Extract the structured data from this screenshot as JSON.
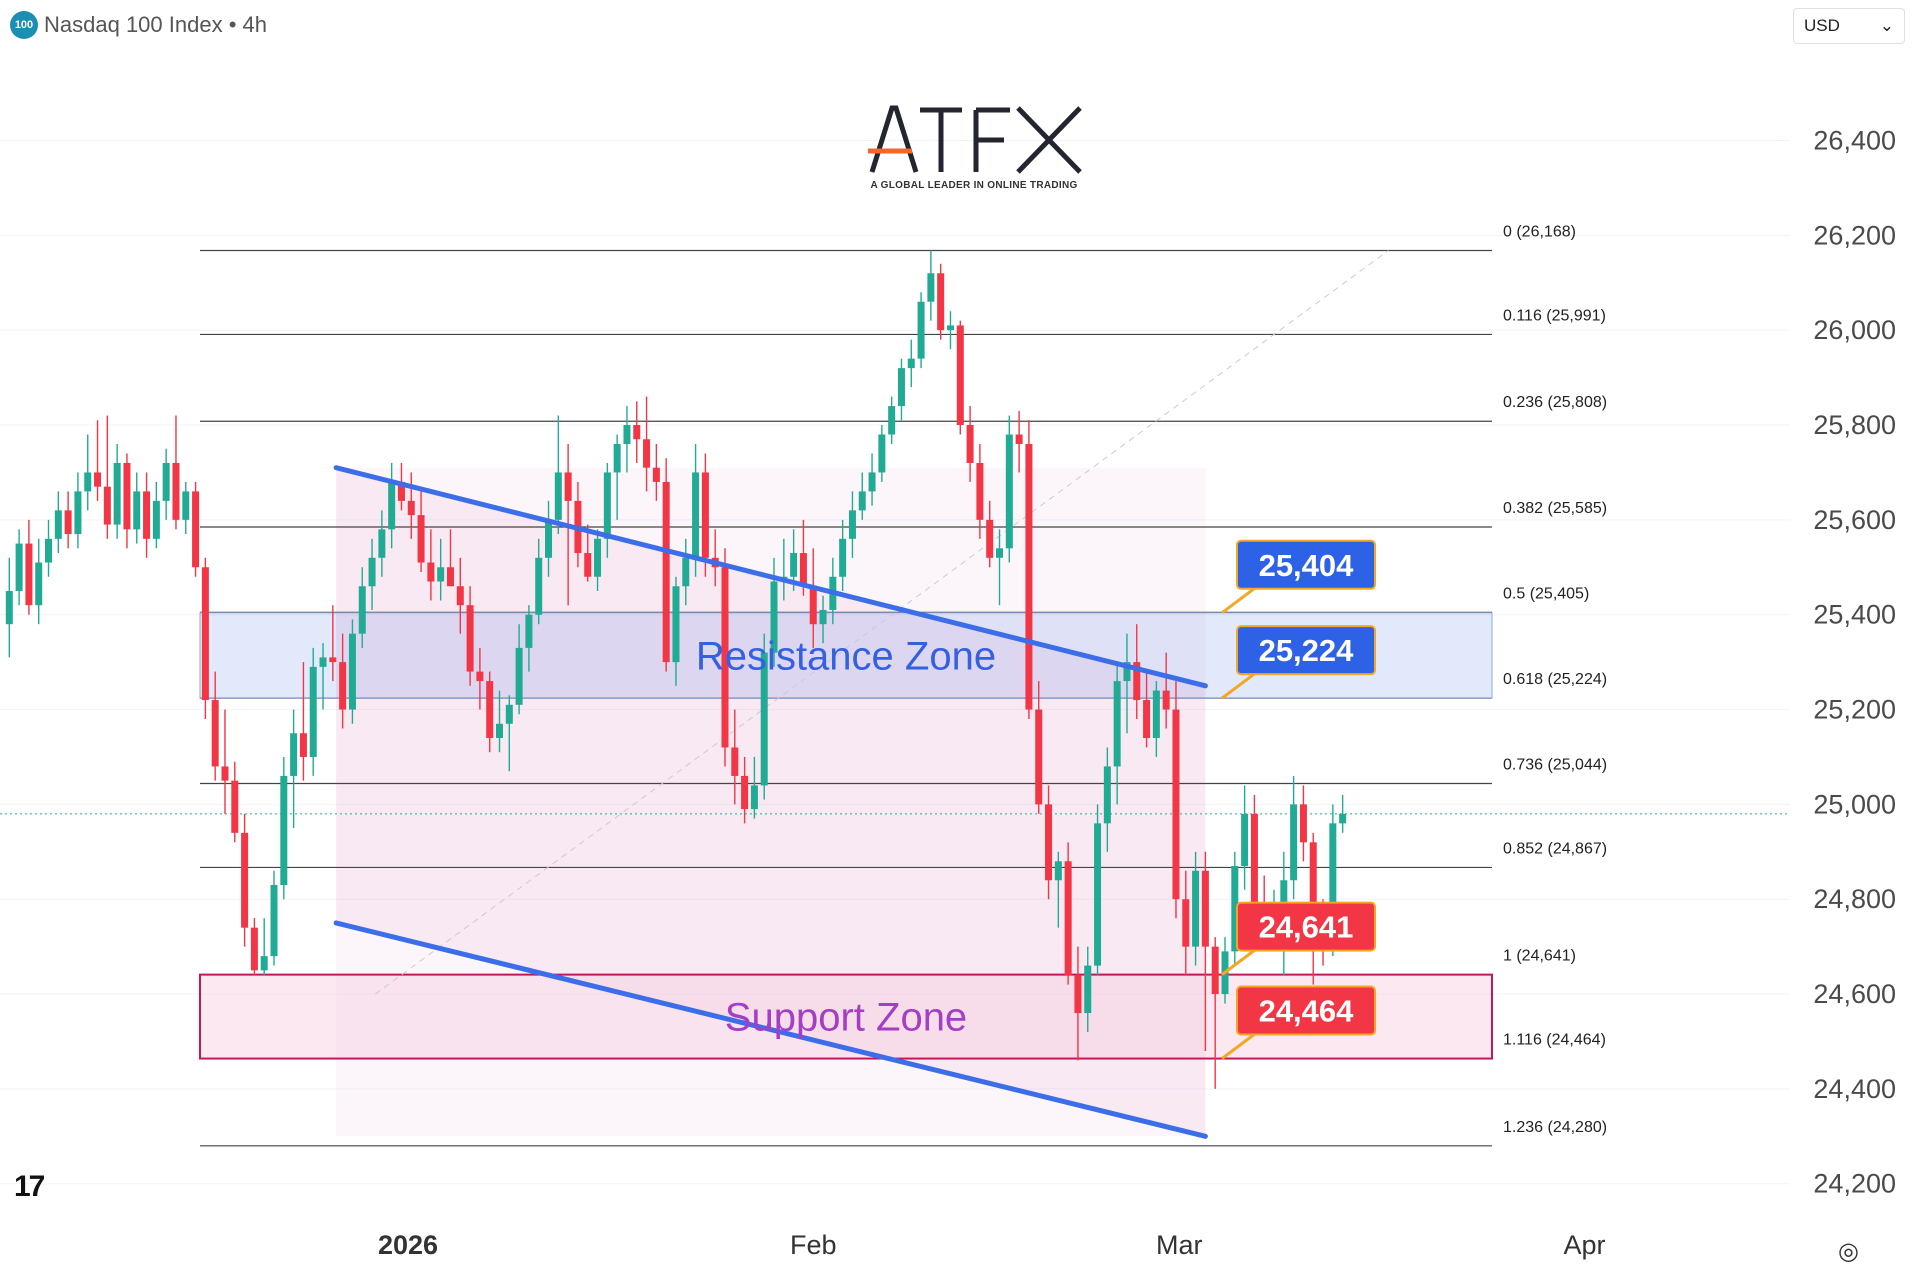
{
  "header": {
    "badge": "100",
    "title": "Nasdaq 100 Index • 4h"
  },
  "currency": {
    "label": "USD",
    "caret": "⌄"
  },
  "logo": {
    "name": "ATFX",
    "tagline": "A GLOBAL LEADER IN ONLINE TRADING"
  },
  "colors": {
    "bull": "#22ab94",
    "bear": "#f23645",
    "channel": "#3b6ee8",
    "resistance_label": "#2e62e6",
    "support_label": "#f23645",
    "support_text": "#a43ec6",
    "resistance_text": "#3560e0"
  },
  "icons": {
    "tradingview": "tradingview-logo-icon",
    "settings": "gear-icon"
  },
  "chart_data": {
    "type": "candlestick",
    "title": "",
    "y_range": [
      24150,
      26600
    ],
    "y_ticks": [
      24200,
      24400,
      24600,
      24800,
      25000,
      25200,
      25400,
      25600,
      25800,
      26000,
      26200,
      26400
    ],
    "y_tick_labels": [
      "24,200",
      "24,400",
      "24,600",
      "24,800",
      "25,000",
      "25,200",
      "25,400",
      "25,600",
      "25,800",
      "26,000",
      "26,200",
      "26,400"
    ],
    "x_range": [
      0,
      390
    ],
    "x_ticks": [
      {
        "x": 0,
        "label": "2026"
      },
      {
        "x": 124,
        "label": "Feb"
      },
      {
        "x": 236,
        "label": "Mar"
      },
      {
        "x": 360,
        "label": "Apr"
      }
    ],
    "current_price": 24980,
    "fibonacci": [
      {
        "level": "0",
        "value": 26168,
        "label": "0 (26,168)"
      },
      {
        "level": "0.116",
        "value": 25991,
        "label": "0.116 (25,991)"
      },
      {
        "level": "0.236",
        "value": 25808,
        "label": "0.236 (25,808)"
      },
      {
        "level": "0.382",
        "value": 25585,
        "label": "0.382 (25,585)"
      },
      {
        "level": "0.5",
        "value": 25405,
        "label": "0.5 (25,405)"
      },
      {
        "level": "0.618",
        "value": 25224,
        "label": "0.618 (25,224)"
      },
      {
        "level": "0.736",
        "value": 25044,
        "label": "0.736 (25,044)"
      },
      {
        "level": "0.852",
        "value": 24867,
        "label": "0.852 (24,867)"
      },
      {
        "level": "1",
        "value": 24641,
        "label": "1 (24,641)"
      },
      {
        "level": "1.116",
        "value": 24464,
        "label": "1.116 (24,464)"
      },
      {
        "level": "1.236",
        "value": 24280,
        "label": "1.236 (24,280)"
      }
    ],
    "zones": [
      {
        "name": "Resistance Zone",
        "from": 25224,
        "to": 25404
      },
      {
        "name": "Support Zone",
        "from": 24464,
        "to": 24641
      }
    ],
    "price_labels": [
      {
        "text": "25,404",
        "value": 25404,
        "kind": "resistance"
      },
      {
        "text": "25,224",
        "value": 25224,
        "kind": "resistance"
      },
      {
        "text": "24,641",
        "value": 24641,
        "kind": "support"
      },
      {
        "text": "24,464",
        "value": 24464,
        "kind": "support"
      }
    ],
    "channel": {
      "upper": [
        {
          "x": -22,
          "y": 25710
        },
        {
          "x": 244,
          "y": 25250
        }
      ],
      "lower": [
        {
          "x": -22,
          "y": 24750
        },
        {
          "x": 244,
          "y": 24300
        }
      ]
    },
    "trend_line": [
      {
        "x": -10,
        "y": 24600
      },
      {
        "x": 300,
        "y": 26168
      }
    ],
    "candles": [
      {
        "x": -122,
        "o": 25380,
        "h": 25520,
        "l": 25310,
        "c": 25450
      },
      {
        "x": -119,
        "o": 25450,
        "h": 25580,
        "l": 25420,
        "c": 25550
      },
      {
        "x": -116,
        "o": 25550,
        "h": 25600,
        "l": 25400,
        "c": 25420
      },
      {
        "x": -113,
        "o": 25420,
        "h": 25560,
        "l": 25380,
        "c": 25510
      },
      {
        "x": -110,
        "o": 25510,
        "h": 25600,
        "l": 25480,
        "c": 25560
      },
      {
        "x": -107,
        "o": 25560,
        "h": 25660,
        "l": 25530,
        "c": 25620
      },
      {
        "x": -104,
        "o": 25620,
        "h": 25660,
        "l": 25540,
        "c": 25570
      },
      {
        "x": -101,
        "o": 25570,
        "h": 25700,
        "l": 25540,
        "c": 25660
      },
      {
        "x": -98,
        "o": 25660,
        "h": 25780,
        "l": 25620,
        "c": 25700
      },
      {
        "x": -95,
        "o": 25700,
        "h": 25810,
        "l": 25640,
        "c": 25670
      },
      {
        "x": -92,
        "o": 25670,
        "h": 25820,
        "l": 25560,
        "c": 25590
      },
      {
        "x": -89,
        "o": 25590,
        "h": 25760,
        "l": 25560,
        "c": 25720
      },
      {
        "x": -86,
        "o": 25720,
        "h": 25740,
        "l": 25540,
        "c": 25580
      },
      {
        "x": -83,
        "o": 25580,
        "h": 25700,
        "l": 25550,
        "c": 25660
      },
      {
        "x": -80,
        "o": 25660,
        "h": 25700,
        "l": 25520,
        "c": 25560
      },
      {
        "x": -77,
        "o": 25560,
        "h": 25680,
        "l": 25540,
        "c": 25640
      },
      {
        "x": -74,
        "o": 25640,
        "h": 25750,
        "l": 25600,
        "c": 25720
      },
      {
        "x": -71,
        "o": 25720,
        "h": 25820,
        "l": 25580,
        "c": 25600
      },
      {
        "x": -68,
        "o": 25600,
        "h": 25680,
        "l": 25570,
        "c": 25660
      },
      {
        "x": -65,
        "o": 25660,
        "h": 25680,
        "l": 25480,
        "c": 25500
      },
      {
        "x": -62,
        "o": 25500,
        "h": 25520,
        "l": 25180,
        "c": 25220
      },
      {
        "x": -59,
        "o": 25220,
        "h": 25280,
        "l": 25050,
        "c": 25080
      },
      {
        "x": -56,
        "o": 25080,
        "h": 25200,
        "l": 24980,
        "c": 25050
      },
      {
        "x": -53,
        "o": 25050,
        "h": 25090,
        "l": 24920,
        "c": 24940
      },
      {
        "x": -50,
        "o": 24940,
        "h": 24980,
        "l": 24700,
        "c": 24740
      },
      {
        "x": -47,
        "o": 24740,
        "h": 24760,
        "l": 24640,
        "c": 24650
      },
      {
        "x": -44,
        "o": 24650,
        "h": 24760,
        "l": 24640,
        "c": 24680
      },
      {
        "x": -41,
        "o": 24680,
        "h": 24860,
        "l": 24660,
        "c": 24830
      },
      {
        "x": -38,
        "o": 24830,
        "h": 25100,
        "l": 24800,
        "c": 25060
      },
      {
        "x": -35,
        "o": 25060,
        "h": 25200,
        "l": 24950,
        "c": 25150
      },
      {
        "x": -32,
        "o": 25150,
        "h": 25300,
        "l": 25050,
        "c": 25100
      },
      {
        "x": -29,
        "o": 25100,
        "h": 25330,
        "l": 25060,
        "c": 25290
      },
      {
        "x": -26,
        "o": 25290,
        "h": 25340,
        "l": 25200,
        "c": 25310
      },
      {
        "x": -23,
        "o": 25310,
        "h": 25420,
        "l": 25260,
        "c": 25300
      },
      {
        "x": -20,
        "o": 25300,
        "h": 25360,
        "l": 25160,
        "c": 25200
      },
      {
        "x": -17,
        "o": 25200,
        "h": 25390,
        "l": 25170,
        "c": 25360
      },
      {
        "x": -14,
        "o": 25360,
        "h": 25500,
        "l": 25330,
        "c": 25460
      },
      {
        "x": -11,
        "o": 25460,
        "h": 25560,
        "l": 25410,
        "c": 25520
      },
      {
        "x": -8,
        "o": 25520,
        "h": 25620,
        "l": 25480,
        "c": 25580
      },
      {
        "x": -5,
        "o": 25580,
        "h": 25720,
        "l": 25540,
        "c": 25680
      },
      {
        "x": -2,
        "o": 25680,
        "h": 25720,
        "l": 25620,
        "c": 25640
      },
      {
        "x": 1,
        "o": 25640,
        "h": 25700,
        "l": 25560,
        "c": 25610
      },
      {
        "x": 4,
        "o": 25610,
        "h": 25660,
        "l": 25490,
        "c": 25510
      },
      {
        "x": 7,
        "o": 25510,
        "h": 25580,
        "l": 25430,
        "c": 25470
      },
      {
        "x": 10,
        "o": 25470,
        "h": 25560,
        "l": 25430,
        "c": 25500
      },
      {
        "x": 13,
        "o": 25500,
        "h": 25580,
        "l": 25460,
        "c": 25460
      },
      {
        "x": 16,
        "o": 25460,
        "h": 25520,
        "l": 25360,
        "c": 25420
      },
      {
        "x": 19,
        "o": 25420,
        "h": 25460,
        "l": 25250,
        "c": 25280
      },
      {
        "x": 22,
        "o": 25280,
        "h": 25330,
        "l": 25200,
        "c": 25260
      },
      {
        "x": 25,
        "o": 25260,
        "h": 25280,
        "l": 25110,
        "c": 25140
      },
      {
        "x": 28,
        "o": 25140,
        "h": 25240,
        "l": 25110,
        "c": 25170
      },
      {
        "x": 31,
        "o": 25170,
        "h": 25230,
        "l": 25070,
        "c": 25210
      },
      {
        "x": 34,
        "o": 25210,
        "h": 25380,
        "l": 25190,
        "c": 25330
      },
      {
        "x": 37,
        "o": 25330,
        "h": 25420,
        "l": 25280,
        "c": 25400
      },
      {
        "x": 40,
        "o": 25400,
        "h": 25560,
        "l": 25380,
        "c": 25520
      },
      {
        "x": 43,
        "o": 25520,
        "h": 25640,
        "l": 25480,
        "c": 25600
      },
      {
        "x": 46,
        "o": 25600,
        "h": 25820,
        "l": 25570,
        "c": 25700
      },
      {
        "x": 49,
        "o": 25700,
        "h": 25760,
        "l": 25420,
        "c": 25640
      },
      {
        "x": 52,
        "o": 25640,
        "h": 25680,
        "l": 25500,
        "c": 25530
      },
      {
        "x": 55,
        "o": 25530,
        "h": 25590,
        "l": 25470,
        "c": 25480
      },
      {
        "x": 58,
        "o": 25480,
        "h": 25580,
        "l": 25450,
        "c": 25560
      },
      {
        "x": 61,
        "o": 25560,
        "h": 25720,
        "l": 25520,
        "c": 25700
      },
      {
        "x": 64,
        "o": 25700,
        "h": 25780,
        "l": 25600,
        "c": 25760
      },
      {
        "x": 67,
        "o": 25760,
        "h": 25840,
        "l": 25700,
        "c": 25800
      },
      {
        "x": 70,
        "o": 25800,
        "h": 25850,
        "l": 25720,
        "c": 25770
      },
      {
        "x": 73,
        "o": 25770,
        "h": 25860,
        "l": 25660,
        "c": 25710
      },
      {
        "x": 76,
        "o": 25710,
        "h": 25760,
        "l": 25640,
        "c": 25680
      },
      {
        "x": 79,
        "o": 25680,
        "h": 25730,
        "l": 25280,
        "c": 25300
      },
      {
        "x": 82,
        "o": 25300,
        "h": 25480,
        "l": 25250,
        "c": 25460
      },
      {
        "x": 85,
        "o": 25460,
        "h": 25560,
        "l": 25420,
        "c": 25520
      },
      {
        "x": 88,
        "o": 25520,
        "h": 25760,
        "l": 25480,
        "c": 25700
      },
      {
        "x": 91,
        "o": 25700,
        "h": 25740,
        "l": 25480,
        "c": 25520
      },
      {
        "x": 94,
        "o": 25520,
        "h": 25580,
        "l": 25460,
        "c": 25500
      },
      {
        "x": 97,
        "o": 25500,
        "h": 25540,
        "l": 25080,
        "c": 25120
      },
      {
        "x": 100,
        "o": 25120,
        "h": 25200,
        "l": 25000,
        "c": 25060
      },
      {
        "x": 103,
        "o": 25060,
        "h": 25100,
        "l": 24960,
        "c": 24990
      },
      {
        "x": 106,
        "o": 24990,
        "h": 25100,
        "l": 24970,
        "c": 25040
      },
      {
        "x": 109,
        "o": 25040,
        "h": 25360,
        "l": 25010,
        "c": 25320
      },
      {
        "x": 112,
        "o": 25320,
        "h": 25520,
        "l": 25290,
        "c": 25470
      },
      {
        "x": 115,
        "o": 25470,
        "h": 25560,
        "l": 25430,
        "c": 25480
      },
      {
        "x": 118,
        "o": 25480,
        "h": 25580,
        "l": 25450,
        "c": 25530
      },
      {
        "x": 121,
        "o": 25530,
        "h": 25600,
        "l": 25440,
        "c": 25460
      },
      {
        "x": 124,
        "o": 25460,
        "h": 25540,
        "l": 25330,
        "c": 25380
      },
      {
        "x": 127,
        "o": 25380,
        "h": 25440,
        "l": 25340,
        "c": 25410
      },
      {
        "x": 130,
        "o": 25410,
        "h": 25520,
        "l": 25380,
        "c": 25480
      },
      {
        "x": 133,
        "o": 25480,
        "h": 25600,
        "l": 25450,
        "c": 25560
      },
      {
        "x": 136,
        "o": 25560,
        "h": 25660,
        "l": 25520,
        "c": 25620
      },
      {
        "x": 139,
        "o": 25620,
        "h": 25700,
        "l": 25600,
        "c": 25660
      },
      {
        "x": 142,
        "o": 25660,
        "h": 25740,
        "l": 25630,
        "c": 25700
      },
      {
        "x": 145,
        "o": 25700,
        "h": 25800,
        "l": 25680,
        "c": 25780
      },
      {
        "x": 148,
        "o": 25780,
        "h": 25860,
        "l": 25760,
        "c": 25840
      },
      {
        "x": 151,
        "o": 25840,
        "h": 25940,
        "l": 25810,
        "c": 25920
      },
      {
        "x": 154,
        "o": 25920,
        "h": 25980,
        "l": 25880,
        "c": 25940
      },
      {
        "x": 157,
        "o": 25940,
        "h": 26080,
        "l": 25920,
        "c": 26060
      },
      {
        "x": 160,
        "o": 26060,
        "h": 26168,
        "l": 26020,
        "c": 26120
      },
      {
        "x": 163,
        "o": 26120,
        "h": 26140,
        "l": 25980,
        "c": 26000
      },
      {
        "x": 166,
        "o": 26000,
        "h": 26040,
        "l": 25960,
        "c": 26010
      },
      {
        "x": 169,
        "o": 26010,
        "h": 26020,
        "l": 25780,
        "c": 25800
      },
      {
        "x": 172,
        "o": 25800,
        "h": 25840,
        "l": 25680,
        "c": 25720
      },
      {
        "x": 175,
        "o": 25720,
        "h": 25760,
        "l": 25560,
        "c": 25600
      },
      {
        "x": 178,
        "o": 25600,
        "h": 25640,
        "l": 25500,
        "c": 25520
      },
      {
        "x": 181,
        "o": 25520,
        "h": 25580,
        "l": 25420,
        "c": 25540
      },
      {
        "x": 184,
        "o": 25540,
        "h": 25820,
        "l": 25510,
        "c": 25780
      },
      {
        "x": 187,
        "o": 25780,
        "h": 25830,
        "l": 25700,
        "c": 25760
      },
      {
        "x": 190,
        "o": 25760,
        "h": 25810,
        "l": 25180,
        "c": 25200
      },
      {
        "x": 193,
        "o": 25200,
        "h": 25260,
        "l": 24980,
        "c": 25000
      },
      {
        "x": 196,
        "o": 25000,
        "h": 25040,
        "l": 24800,
        "c": 24840
      },
      {
        "x": 199,
        "o": 24840,
        "h": 24900,
        "l": 24740,
        "c": 24880
      },
      {
        "x": 202,
        "o": 24880,
        "h": 24920,
        "l": 24620,
        "c": 24640
      },
      {
        "x": 205,
        "o": 24640,
        "h": 24700,
        "l": 24460,
        "c": 24560
      },
      {
        "x": 208,
        "o": 24560,
        "h": 24700,
        "l": 24520,
        "c": 24660
      },
      {
        "x": 211,
        "o": 24660,
        "h": 25000,
        "l": 24640,
        "c": 24960
      },
      {
        "x": 214,
        "o": 24960,
        "h": 25120,
        "l": 24900,
        "c": 25080
      },
      {
        "x": 217,
        "o": 25080,
        "h": 25300,
        "l": 25000,
        "c": 25260
      },
      {
        "x": 220,
        "o": 25260,
        "h": 25360,
        "l": 25150,
        "c": 25300
      },
      {
        "x": 223,
        "o": 25300,
        "h": 25380,
        "l": 25180,
        "c": 25220
      },
      {
        "x": 226,
        "o": 25220,
        "h": 25280,
        "l": 25120,
        "c": 25140
      },
      {
        "x": 229,
        "o": 25140,
        "h": 25260,
        "l": 25100,
        "c": 25240
      },
      {
        "x": 232,
        "o": 25240,
        "h": 25320,
        "l": 25160,
        "c": 25200
      },
      {
        "x": 235,
        "o": 25200,
        "h": 25260,
        "l": 24760,
        "c": 24800
      },
      {
        "x": 238,
        "o": 24800,
        "h": 24860,
        "l": 24640,
        "c": 24700
      },
      {
        "x": 241,
        "o": 24700,
        "h": 24900,
        "l": 24660,
        "c": 24860
      },
      {
        "x": 244,
        "o": 24860,
        "h": 24900,
        "l": 24480,
        "c": 24700
      },
      {
        "x": 247,
        "o": 24700,
        "h": 24720,
        "l": 24400,
        "c": 24600
      },
      {
        "x": 250,
        "o": 24600,
        "h": 24720,
        "l": 24580,
        "c": 24690
      },
      {
        "x": 253,
        "o": 24690,
        "h": 24900,
        "l": 24660,
        "c": 24870
      },
      {
        "x": 256,
        "o": 24870,
        "h": 25040,
        "l": 24820,
        "c": 24980
      },
      {
        "x": 259,
        "o": 24980,
        "h": 25020,
        "l": 24760,
        "c": 24780
      },
      {
        "x": 262,
        "o": 24780,
        "h": 24850,
        "l": 24720,
        "c": 24760
      },
      {
        "x": 265,
        "o": 24760,
        "h": 24820,
        "l": 24720,
        "c": 24780
      },
      {
        "x": 268,
        "o": 24780,
        "h": 24900,
        "l": 24640,
        "c": 24840
      },
      {
        "x": 271,
        "o": 24840,
        "h": 25060,
        "l": 24800,
        "c": 25000
      },
      {
        "x": 274,
        "o": 25000,
        "h": 25040,
        "l": 24880,
        "c": 24920
      },
      {
        "x": 277,
        "o": 24920,
        "h": 24940,
        "l": 24620,
        "c": 24760
      },
      {
        "x": 280,
        "o": 24760,
        "h": 24800,
        "l": 24660,
        "c": 24720
      },
      {
        "x": 283,
        "o": 24720,
        "h": 25000,
        "l": 24680,
        "c": 24960
      },
      {
        "x": 286,
        "o": 24960,
        "h": 25020,
        "l": 24940,
        "c": 24980
      }
    ]
  }
}
